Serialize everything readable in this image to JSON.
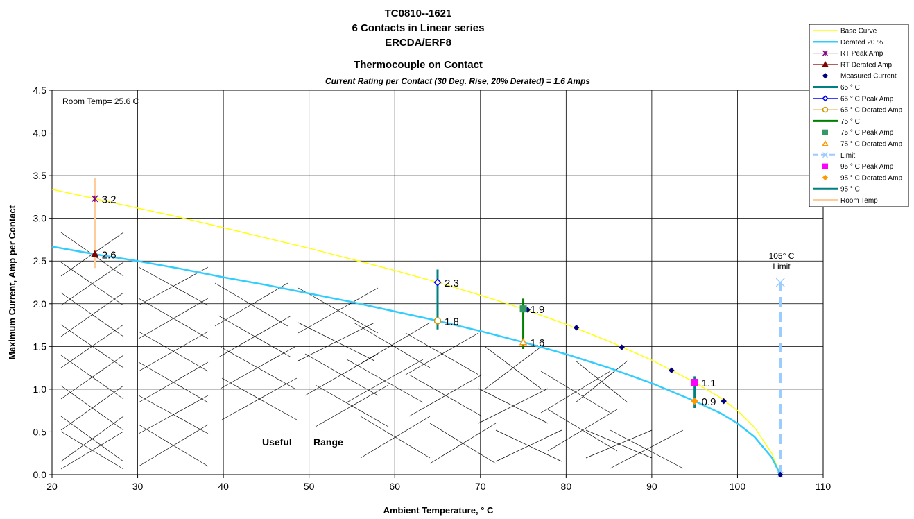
{
  "chart_data": {
    "type": "line",
    "title_lines": [
      "TC0810--1621",
      "6 Contacts in Linear series",
      "ERCDA/ERF8",
      "Thermocouple on Contact"
    ],
    "subtitle": "Current Rating per Contact (30 Deg. Rise, 20% Derated)  = 1.6 Amps",
    "xlabel": "Ambient Temperature,  ° C",
    "ylabel": "Maximum Current, Amp per Contact",
    "xlim": [
      20,
      110
    ],
    "ylim": [
      0,
      4.5
    ],
    "x_ticks": [
      20,
      30,
      40,
      50,
      60,
      70,
      80,
      90,
      100,
      110
    ],
    "y_ticks": [
      "0.0",
      "0.5",
      "1.0",
      "1.5",
      "2.0",
      "2.5",
      "3.0",
      "3.5",
      "4.0",
      "4.5"
    ],
    "grid": true,
    "legend_position": "top-right",
    "annotations": {
      "room_temp": "Room Temp= 25.6 C",
      "limit_line1": "105° C",
      "limit_line2": "Limit",
      "useful": "Useful",
      "range": "Range"
    },
    "series": [
      {
        "name": "Base Curve",
        "color": "#ffff00",
        "kind": "line",
        "x": [
          20,
          25,
          30,
          35,
          40,
          45,
          50,
          55,
          60,
          65,
          70,
          75,
          80,
          85,
          90,
          95,
          98,
          100,
          102,
          104,
          105
        ],
        "y": [
          3.34,
          3.23,
          3.12,
          3.01,
          2.89,
          2.77,
          2.65,
          2.52,
          2.39,
          2.25,
          2.1,
          1.94,
          1.76,
          1.56,
          1.34,
          1.08,
          0.9,
          0.75,
          0.55,
          0.25,
          0.0
        ]
      },
      {
        "name": "Derated 20 %",
        "color": "#33ccff",
        "kind": "line",
        "x": [
          20,
          25,
          30,
          35,
          40,
          45,
          50,
          55,
          60,
          65,
          70,
          75,
          80,
          85,
          90,
          95,
          98,
          100,
          102,
          104,
          105
        ],
        "y": [
          2.67,
          2.58,
          2.5,
          2.41,
          2.31,
          2.22,
          2.12,
          2.02,
          1.91,
          1.8,
          1.68,
          1.55,
          1.41,
          1.25,
          1.07,
          0.86,
          0.72,
          0.6,
          0.44,
          0.2,
          0.0
        ]
      },
      {
        "name": "RT Peak Amp",
        "color": "#800080",
        "kind": "marker",
        "marker": "star",
        "x": [
          25
        ],
        "y": [
          3.23
        ],
        "labels": [
          "3.2"
        ]
      },
      {
        "name": "RT Derated Amp",
        "color": "#800000",
        "kind": "marker",
        "marker": "triangle",
        "x": [
          25
        ],
        "y": [
          2.58
        ],
        "labels": [
          "2.6"
        ]
      },
      {
        "name": "Measured Current",
        "color": "#000080",
        "kind": "marker",
        "marker": "diamond",
        "x": [
          75.5,
          81.2,
          86.5,
          92.3,
          98.4,
          105
        ],
        "y": [
          1.93,
          1.72,
          1.49,
          1.22,
          0.86,
          0.0
        ]
      },
      {
        "name": "65  ° C",
        "color": "#008080",
        "kind": "vline",
        "x": [
          65,
          65
        ],
        "y": [
          1.7,
          2.4
        ]
      },
      {
        "name": "65  ° C Peak Amp",
        "color": "#0000ff",
        "kind": "marker",
        "marker": "open-diamond",
        "x": [
          65
        ],
        "y": [
          2.25
        ],
        "labels": [
          "2.3"
        ]
      },
      {
        "name": "65  ° C Derated Amp",
        "color": "#cc9900",
        "kind": "marker",
        "marker": "open-circle",
        "x": [
          65
        ],
        "y": [
          1.8
        ],
        "labels": [
          "1.8"
        ]
      },
      {
        "name": "75  ° C",
        "color": "#008000",
        "kind": "vline",
        "x": [
          75,
          75
        ],
        "y": [
          1.47,
          2.06
        ]
      },
      {
        "name": "75  ° C Peak Amp",
        "color": "#339966",
        "kind": "marker",
        "marker": "square",
        "x": [
          75
        ],
        "y": [
          1.94
        ],
        "labels": [
          "1.9"
        ]
      },
      {
        "name": "75  ° C Derated Amp",
        "color": "#ff9900",
        "kind": "marker",
        "marker": "open-triangle",
        "x": [
          75
        ],
        "y": [
          1.55
        ],
        "labels": [
          "1.6"
        ]
      },
      {
        "name": "Limit",
        "color": "#99ccff",
        "kind": "dashed-vline",
        "x": [
          105,
          105
        ],
        "y": [
          0,
          2.25
        ]
      },
      {
        "name": "95  ° C Peak Amp",
        "color": "#ff00ff",
        "kind": "marker",
        "marker": "square",
        "x": [
          95
        ],
        "y": [
          1.08
        ],
        "labels": [
          "1.1"
        ]
      },
      {
        "name": "95  ° C Derated Amp",
        "color": "#ff9900",
        "kind": "marker",
        "marker": "diamond",
        "x": [
          95
        ],
        "y": [
          0.86
        ],
        "labels": [
          "0.9"
        ]
      },
      {
        "name": "95  ° C",
        "color": "#008080",
        "kind": "vline",
        "x": [
          95,
          95
        ],
        "y": [
          0.78,
          1.15
        ]
      },
      {
        "name": "Room Temp",
        "color": "#ffcc99",
        "kind": "vline",
        "x": [
          25,
          25
        ],
        "y": [
          2.42,
          3.47
        ]
      }
    ]
  }
}
